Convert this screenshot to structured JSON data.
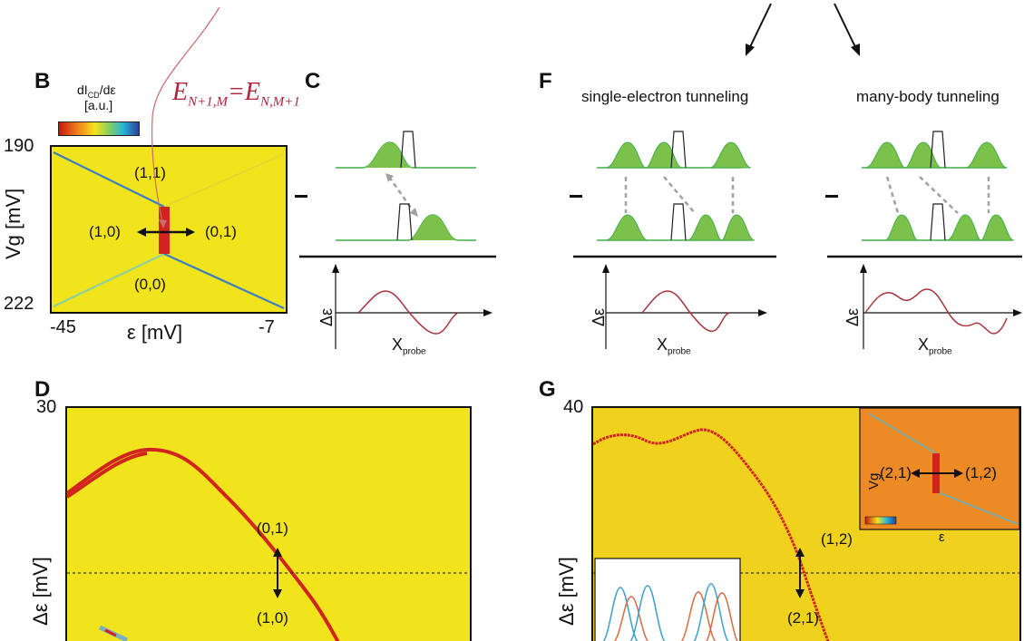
{
  "panels": {
    "B": {
      "letter": "B",
      "colorbar_label_main": "dI",
      "colorbar_label_sub": "CD",
      "colorbar_label_tail": "/dε",
      "colorbar_units": "[a.u.]",
      "equation_main": "E",
      "equation_sub1": "N+1,M",
      "equation_eq": "=E",
      "equation_sub2": "N,M+1",
      "y_top": "190",
      "y_bottom": "222",
      "y_label": "Vg [mV]",
      "x_left": "-45",
      "x_right": "-7",
      "x_label": "ε [mV]",
      "region_11": "(1,1)",
      "region_10": "(1,0)",
      "region_01": "(0,1)",
      "region_00": "(0,0)"
    },
    "C": {
      "letter": "C",
      "axis_y": "Δε",
      "axis_x_main": "X",
      "axis_x_sub": "probe"
    },
    "F": {
      "letter": "F",
      "title_left": "single-electron tunneling",
      "title_right": "many-body tunneling",
      "axis_y": "Δε",
      "axis_x_main": "X",
      "axis_x_sub": "probe"
    },
    "D": {
      "letter": "D",
      "y_top": "30",
      "y_label": "Δε [mV]",
      "label_top": "(0,1)",
      "label_bottom": "(1,0)"
    },
    "G": {
      "letter": "G",
      "y_top": "40",
      "y_label": "Δε [mV]",
      "label_top": "(1,2)",
      "label_bottom": "(2,1)",
      "inset_left": "(2,1)",
      "inset_right": "(1,2)",
      "inset_y": "Vg",
      "inset_x": "ε"
    }
  },
  "colors": {
    "map_yellow": "#f2e41c",
    "trace_red": "#d1241e",
    "line_blue": "#3a7ec4",
    "gauss_green": "#7cc14a",
    "gauss_stroke": "#3fae49",
    "curve_red": "#a8323a",
    "equation_red": "#b0213a"
  }
}
